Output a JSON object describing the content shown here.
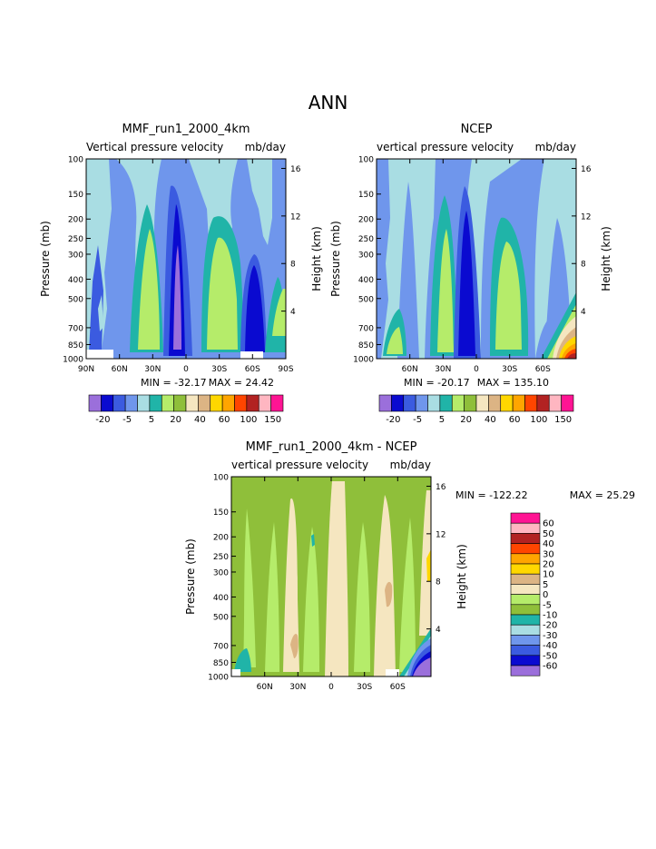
{
  "figure": {
    "title": "ANN"
  },
  "chart_data": [
    {
      "type": "heatmap",
      "title": "MMF_run1_2000_4km",
      "subtitle_left": "Vertical pressure velocity",
      "subtitle_right": "mb/day",
      "xlabel": "",
      "ylabel": "Pressure (mb)",
      "ylabel_right": "Height (km)",
      "x_ticks": [
        "90N",
        "60N",
        "30N",
        "0",
        "30S",
        "60S",
        "90S"
      ],
      "y_ticks": [
        "100",
        "150",
        "200",
        "250",
        "300",
        "400",
        "500",
        "700",
        "850",
        "1000"
      ],
      "y2_ticks": [
        "16",
        "12",
        "8",
        "4"
      ],
      "ylim": [
        1000,
        100
      ],
      "xlim": [
        "90N",
        "90S"
      ],
      "min_label": "MIN = -32.17",
      "max_label": "MAX = 24.42",
      "colorbar_labels": [
        "-20",
        "-5",
        "5",
        "20",
        "40",
        "60",
        "100",
        "150"
      ],
      "colorbar_colors": [
        "#9b6fdb",
        "#0a0ad0",
        "#3b5be0",
        "#6f96ec",
        "#a9dde3",
        "#20b4a8",
        "#b5ec6a",
        "#8fbf3a",
        "#f5e6c0",
        "#dcb484",
        "#ffd700",
        "#ffa500",
        "#ff4500",
        "#b22222",
        "#ffb6c1",
        "#ff1493"
      ]
    },
    {
      "type": "heatmap",
      "title": "NCEP",
      "subtitle_left": "vertical pressure velocity",
      "subtitle_right": "mb/day",
      "xlabel": "",
      "ylabel": "Pressure (mb)",
      "ylabel_right": "Height (km)",
      "x_ticks": [
        "60N",
        "30N",
        "0",
        "30S",
        "60S"
      ],
      "y_ticks": [
        "100",
        "150",
        "200",
        "250",
        "300",
        "400",
        "500",
        "700",
        "850",
        "1000"
      ],
      "y2_ticks": [
        "16",
        "12",
        "8",
        "4"
      ],
      "ylim": [
        1000,
        100
      ],
      "min_label": "MIN = -20.17",
      "max_label": "MAX = 135.10",
      "colorbar_labels": [
        "-20",
        "-5",
        "5",
        "20",
        "40",
        "60",
        "100",
        "150"
      ],
      "colorbar_colors": [
        "#9b6fdb",
        "#0a0ad0",
        "#3b5be0",
        "#6f96ec",
        "#a9dde3",
        "#20b4a8",
        "#b5ec6a",
        "#8fbf3a",
        "#f5e6c0",
        "#dcb484",
        "#ffd700",
        "#ffa500",
        "#ff4500",
        "#b22222",
        "#ffb6c1",
        "#ff1493"
      ]
    },
    {
      "type": "heatmap",
      "title": "MMF_run1_2000_4km - NCEP",
      "subtitle_left": "vertical pressure velocity",
      "subtitle_right": "mb/day",
      "xlabel": "",
      "ylabel": "Pressure (mb)",
      "ylabel_right": "Height (km)",
      "x_ticks": [
        "60N",
        "30N",
        "0",
        "30S",
        "60S"
      ],
      "y_ticks": [
        "100",
        "150",
        "200",
        "250",
        "300",
        "400",
        "500",
        "700",
        "850",
        "1000"
      ],
      "y2_ticks": [
        "16",
        "12",
        "8",
        "4"
      ],
      "ylim": [
        1000,
        100
      ],
      "min_label": "MIN = -122.22",
      "max_label": "MAX =  25.29",
      "colorbar_labels": [
        "60",
        "50",
        "40",
        "30",
        "20",
        "10",
        "5",
        "0",
        "-5",
        "-10",
        "-20",
        "-30",
        "-40",
        "-50",
        "-60"
      ],
      "colorbar_colors": [
        "#ff1493",
        "#ffb6c1",
        "#b22222",
        "#ff4500",
        "#ffa500",
        "#ffd700",
        "#dcb484",
        "#f5e6c0",
        "#b5ec6a",
        "#8fbf3a",
        "#20b4a8",
        "#a9dde3",
        "#6f96ec",
        "#3b5be0",
        "#0a0ad0",
        "#9b6fdb"
      ]
    }
  ]
}
